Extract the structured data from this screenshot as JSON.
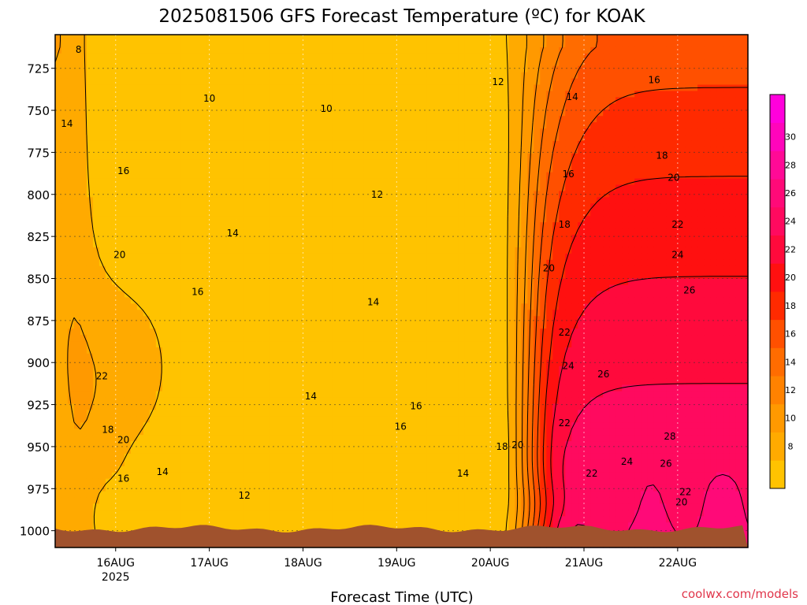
{
  "title": "2025081506 GFS Forecast Temperature (ºC) for KOAK",
  "watermark": "coolwx.com/models",
  "watermark_color": "#e0354a",
  "chart_data": {
    "type": "heatmap",
    "title": "2025081506 GFS Forecast Temperature (ºC) for KOAK",
    "xlabel": "Forecast Time (UTC)",
    "ylabel": "",
    "xlim_hours": [
      -15.5,
      162
    ],
    "ylim": [
      1010,
      705
    ],
    "x_ticks": [
      {
        "label": "16AUG",
        "sub": "2025",
        "hour": 0
      },
      {
        "label": "17AUG",
        "sub": "",
        "hour": 24
      },
      {
        "label": "18AUG",
        "sub": "",
        "hour": 48
      },
      {
        "label": "19AUG",
        "sub": "",
        "hour": 72
      },
      {
        "label": "20AUG",
        "sub": "",
        "hour": 96
      },
      {
        "label": "21AUG",
        "sub": "",
        "hour": 120
      },
      {
        "label": "22AUG",
        "sub": "",
        "hour": 144
      }
    ],
    "y_ticks": [
      725,
      750,
      775,
      800,
      825,
      850,
      875,
      900,
      925,
      950,
      975,
      1000
    ],
    "grid": true,
    "colorbar": {
      "levels": [
        6,
        8,
        10,
        12,
        14,
        16,
        18,
        20,
        22,
        24,
        26,
        28,
        30,
        32
      ],
      "labels": [
        8,
        10,
        12,
        14,
        16,
        18,
        20,
        22,
        24,
        26,
        28,
        30
      ],
      "colors": [
        "#ffc300",
        "#ffaa00",
        "#ff9900",
        "#ff8200",
        "#ff6c00",
        "#ff5000",
        "#ff2a00",
        "#ff1010",
        "#ff0a3c",
        "#ff0a5f",
        "#ff0a78",
        "#ff0a96",
        "#ff05bb",
        "#ff00dc"
      ]
    },
    "contour_labels": [
      {
        "text": "8",
        "hour": -9.5,
        "p": 714
      },
      {
        "text": "10",
        "hour": 24,
        "p": 743
      },
      {
        "text": "10",
        "hour": 54,
        "p": 749
      },
      {
        "text": "12",
        "hour": 98,
        "p": 733
      },
      {
        "text": "14",
        "hour": 117,
        "p": 742
      },
      {
        "text": "16",
        "hour": 138,
        "p": 732
      },
      {
        "text": "14",
        "hour": -12.5,
        "p": 758
      },
      {
        "text": "16",
        "hour": 2,
        "p": 786
      },
      {
        "text": "16",
        "hour": 116,
        "p": 788
      },
      {
        "text": "18",
        "hour": 140,
        "p": 777
      },
      {
        "text": "20",
        "hour": 143,
        "p": 790
      },
      {
        "text": "12",
        "hour": 67,
        "p": 800
      },
      {
        "text": "18",
        "hour": 115,
        "p": 818
      },
      {
        "text": "22",
        "hour": 144,
        "p": 818
      },
      {
        "text": "14",
        "hour": 30,
        "p": 823
      },
      {
        "text": "20",
        "hour": 1,
        "p": 836
      },
      {
        "text": "24",
        "hour": 144,
        "p": 836
      },
      {
        "text": "20",
        "hour": 111,
        "p": 844
      },
      {
        "text": "26",
        "hour": 147,
        "p": 857
      },
      {
        "text": "16",
        "hour": 21,
        "p": 858
      },
      {
        "text": "14",
        "hour": 66,
        "p": 864
      },
      {
        "text": "22",
        "hour": 115,
        "p": 882
      },
      {
        "text": "24",
        "hour": 116,
        "p": 902
      },
      {
        "text": "22",
        "hour": -3.5,
        "p": 908
      },
      {
        "text": "26",
        "hour": 125,
        "p": 907
      },
      {
        "text": "14",
        "hour": 50,
        "p": 920
      },
      {
        "text": "16",
        "hour": 77,
        "p": 926
      },
      {
        "text": "16",
        "hour": 73,
        "p": 938
      },
      {
        "text": "22",
        "hour": 115,
        "p": 936
      },
      {
        "text": "18",
        "hour": -2,
        "p": 940
      },
      {
        "text": "20",
        "hour": 2,
        "p": 946
      },
      {
        "text": "18",
        "hour": 99,
        "p": 950
      },
      {
        "text": "20",
        "hour": 103,
        "p": 949
      },
      {
        "text": "28",
        "hour": 142,
        "p": 944
      },
      {
        "text": "24",
        "hour": 131,
        "p": 959
      },
      {
        "text": "26",
        "hour": 141,
        "p": 960
      },
      {
        "text": "16",
        "hour": 2,
        "p": 969
      },
      {
        "text": "14",
        "hour": 12,
        "p": 965
      },
      {
        "text": "14",
        "hour": 89,
        "p": 966
      },
      {
        "text": "22",
        "hour": 122,
        "p": 966
      },
      {
        "text": "12",
        "hour": 33,
        "p": 979
      },
      {
        "text": "22",
        "hour": 146,
        "p": 977
      },
      {
        "text": "20",
        "hour": 145,
        "p": 983
      }
    ]
  }
}
